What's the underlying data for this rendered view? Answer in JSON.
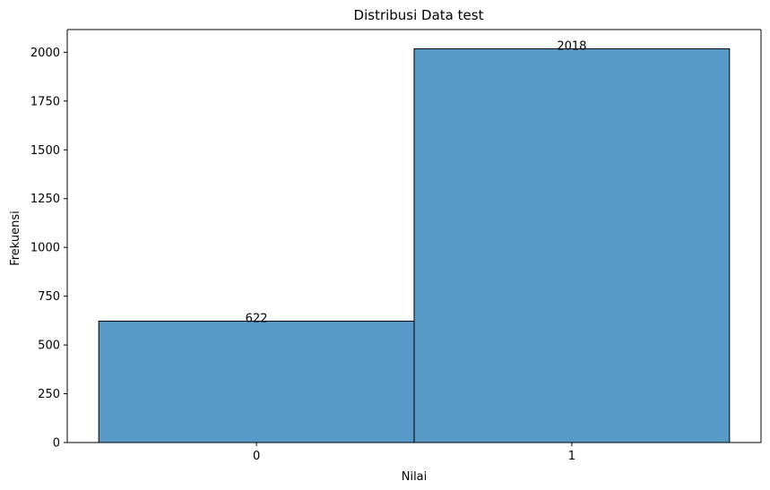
{
  "chart_data": {
    "type": "bar",
    "title": "Distribusi Data test",
    "xlabel": "Nilai",
    "ylabel": "Frekuensi",
    "categories": [
      "0",
      "1"
    ],
    "values": [
      622,
      2018
    ],
    "data_labels": [
      "622",
      "2018"
    ],
    "ylim": [
      0,
      2116.5
    ],
    "yticks": [
      0,
      250,
      500,
      750,
      1000,
      1250,
      1500,
      1750,
      2000
    ],
    "grid": false,
    "legend": "none",
    "bar_color": "#5799c7",
    "bar_edge_color": "#000000"
  }
}
